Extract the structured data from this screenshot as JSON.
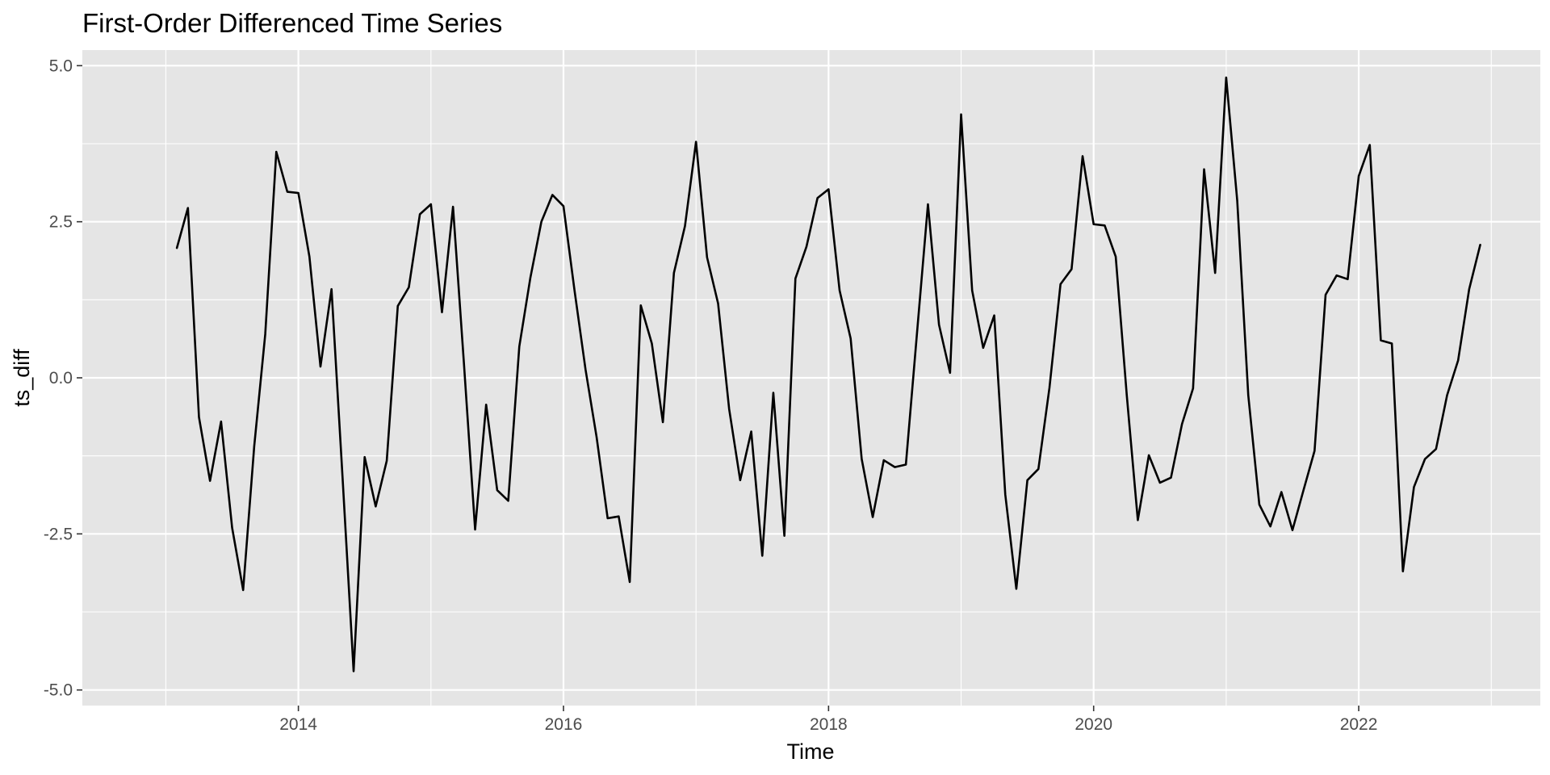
{
  "chart_data": {
    "type": "line",
    "title": "First-Order Differenced Time Series",
    "xlabel": "Time",
    "ylabel": "ts_diff",
    "xlim": [
      2012.37,
      2023.37
    ],
    "ylim": [
      -5.25,
      5.25
    ],
    "x_ticks": [
      2014,
      2016,
      2018,
      2020,
      2022
    ],
    "x_tick_labels": [
      "2014",
      "2016",
      "2018",
      "2020",
      "2022"
    ],
    "y_ticks": [
      -5,
      -2.5,
      0,
      2.5,
      5
    ],
    "y_tick_labels": [
      "-5.0",
      "-2.5",
      "0.0",
      "2.5",
      "5.0"
    ],
    "grid": true,
    "legend": "none",
    "colors": {
      "line": "#000000",
      "panel": "#e5e5e5",
      "grid": "#ffffff"
    },
    "x_start": 2013.0833,
    "x_step": 0.0833333,
    "series": [
      {
        "values": [
          2.08,
          2.72,
          -0.63,
          -1.65,
          -0.7,
          -2.4,
          -3.4,
          -1.1,
          0.7,
          3.62,
          2.98,
          2.96,
          1.94,
          0.18,
          1.42,
          -1.6,
          -4.7,
          -1.27,
          -2.06,
          -1.33,
          1.15,
          1.45,
          2.62,
          2.78,
          1.05,
          2.74,
          0.2,
          -2.43,
          -0.43,
          -1.8,
          -1.97,
          0.5,
          1.6,
          2.5,
          2.93,
          2.75,
          1.4,
          0.13,
          -0.95,
          -2.25,
          -2.22,
          -3.27,
          1.16,
          0.55,
          -0.71,
          1.68,
          2.43,
          3.78,
          1.93,
          1.19,
          -0.5,
          -1.64,
          -0.86,
          -2.85,
          -0.24,
          -2.53,
          1.59,
          2.1,
          2.88,
          3.02,
          1.4,
          0.63,
          -1.3,
          -2.23,
          -1.32,
          -1.43,
          -1.39,
          0.7,
          2.78,
          0.85,
          0.08,
          4.22,
          1.4,
          0.48,
          1.0,
          -1.87,
          -3.38,
          -1.64,
          -1.46,
          -0.16,
          1.5,
          1.74,
          3.55,
          2.46,
          2.44,
          1.94,
          -0.28,
          -2.28,
          -1.24,
          -1.68,
          -1.6,
          -0.74,
          -0.17,
          3.34,
          1.68,
          4.81,
          2.84,
          -0.28,
          -2.03,
          -2.38,
          -1.83,
          -2.44,
          -1.8,
          -1.17,
          1.33,
          1.64,
          1.58,
          3.23,
          3.73,
          0.6,
          0.55,
          -3.1,
          -1.75,
          -1.3,
          -1.14,
          -0.28,
          0.28,
          1.42,
          2.13
        ]
      }
    ]
  }
}
